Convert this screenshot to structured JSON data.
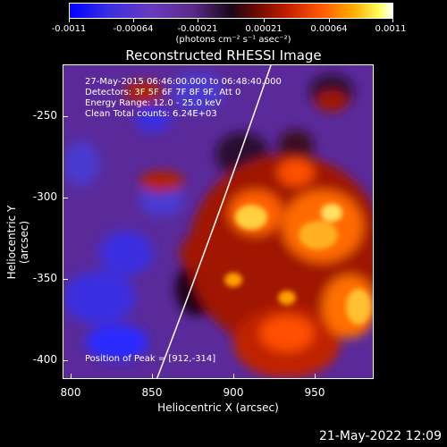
{
  "colorbar": {
    "tick_labels": [
      "-0.0011",
      "-0.00064",
      "-0.00021",
      "0.00021",
      "0.00064",
      "0.0011"
    ],
    "unit_label": "(photons cm⁻² s⁻¹ asec⁻²)",
    "colors": [
      "#0000ff",
      "#6a3ac0",
      "#1a0618",
      "#c82000",
      "#ffae00",
      "#ffffff"
    ]
  },
  "title": "Reconstructed RHESSI Image",
  "info": {
    "line1": "27-May-2015 06:46:00.000 to 06:48:40.000",
    "line2": "Detectors: 3F 5F 6F 7F 8F 9F, Att 0",
    "line3": "Energy Range: 12.0 - 25.0 keV",
    "line4": "Clean     Total counts: 6.24E+03",
    "peak": "Position of Peak = [912,-314]"
  },
  "axes": {
    "ylabel": "Heliocentric Y (arcsec)",
    "xlabel": "Heliocentric X (arcsec)",
    "yticks": [
      "-250",
      "-300",
      "-350",
      "-400"
    ],
    "xticks": [
      "800",
      "850",
      "900",
      "950"
    ]
  },
  "timestamp": "21-May-2022 12:09"
}
